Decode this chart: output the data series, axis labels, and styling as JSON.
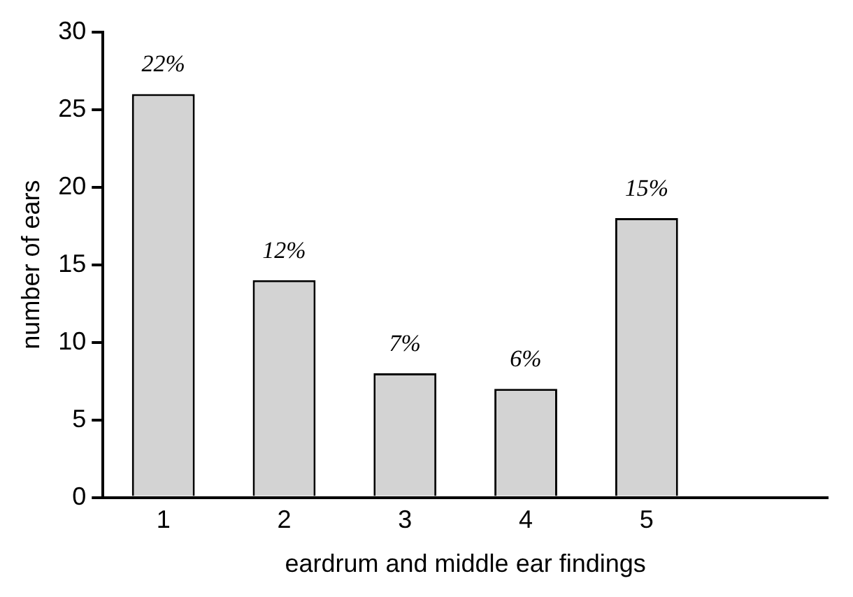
{
  "chart_data": {
    "type": "bar",
    "xlabel": "eardrum and middle ear findings",
    "ylabel": "number of ears",
    "categories": [
      "1",
      "2",
      "3",
      "4",
      "5",
      null
    ],
    "values": [
      26,
      14,
      8,
      7,
      18,
      null
    ],
    "annotations": [
      {
        "text": "22%",
        "x": "1",
        "y": 26
      },
      {
        "text": "12%",
        "x": "2",
        "y": 14
      },
      {
        "text": "7%",
        "x": "3",
        "y": 8
      },
      {
        "text": "6%",
        "x": "4",
        "y": 7
      },
      {
        "text": "15%",
        "x": "5",
        "y": 18
      }
    ],
    "color": "#d3d3d3",
    "ylim": [
      0,
      30
    ],
    "yticks": [
      0,
      5,
      10,
      15,
      20,
      25,
      30
    ]
  }
}
